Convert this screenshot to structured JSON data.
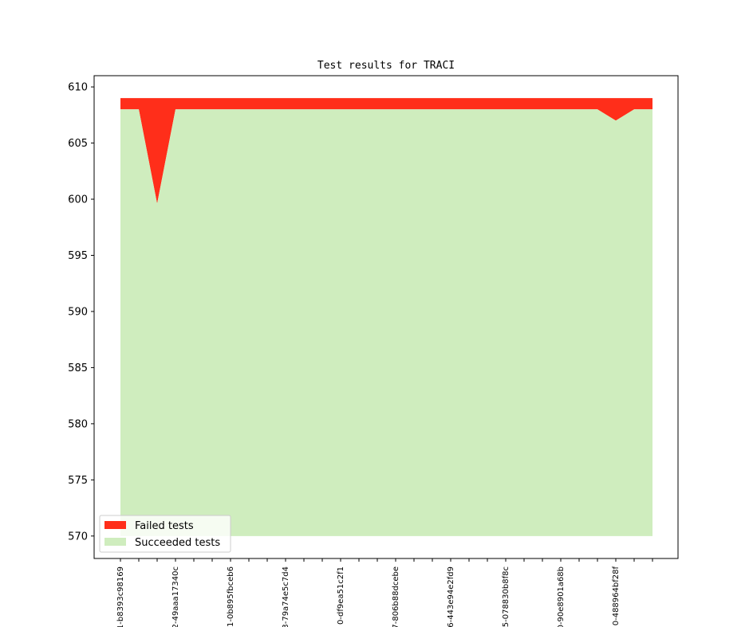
{
  "chart_data": {
    "type": "area",
    "title": "Test results for TRACI",
    "xlabel": "",
    "ylabel": "",
    "ylim": [
      568.0,
      611.0
    ],
    "yticks": [
      570,
      575,
      580,
      585,
      590,
      595,
      600,
      605,
      610
    ],
    "x_tick_labels": [
      "1-b8393c98169",
      "2-49aaa17340c",
      "1-0b895fbceb6",
      "3-79a74e5c7d4",
      "0-df9ea51c2f1",
      "7-806b88dcebe",
      "6-443e94e2fd9",
      "5-078830b8f8c",
      "0-90e8901a68b",
      "0-488964bf28f"
    ],
    "x_label_every": 3,
    "baseline": 570,
    "total_tests": [
      609,
      609,
      609,
      609,
      609,
      609,
      609,
      609,
      609,
      609,
      609,
      609,
      609,
      609,
      609,
      609,
      609,
      609,
      609,
      609,
      609,
      609,
      609,
      609,
      609,
      609,
      609,
      609,
      609,
      609
    ],
    "series": [
      {
        "name": "Failed tests",
        "color": "#ff2e1a",
        "values": [
          1,
          1,
          9.4,
          1,
          1,
          1,
          1,
          1,
          1,
          1,
          1,
          1,
          1,
          1,
          1,
          1,
          1,
          1,
          1,
          1,
          1,
          1,
          1,
          1,
          1,
          1,
          1,
          2,
          1,
          1
        ]
      },
      {
        "name": "Succeeded tests",
        "color": "#cfedbe",
        "values": [
          608,
          608,
          599.6,
          608,
          608,
          608,
          608,
          608,
          608,
          608,
          608,
          608,
          608,
          608,
          608,
          608,
          608,
          608,
          608,
          608,
          608,
          608,
          608,
          608,
          608,
          608,
          608,
          607,
          608,
          608
        ]
      }
    ],
    "grid": false,
    "legend_position": "bottom-left"
  }
}
